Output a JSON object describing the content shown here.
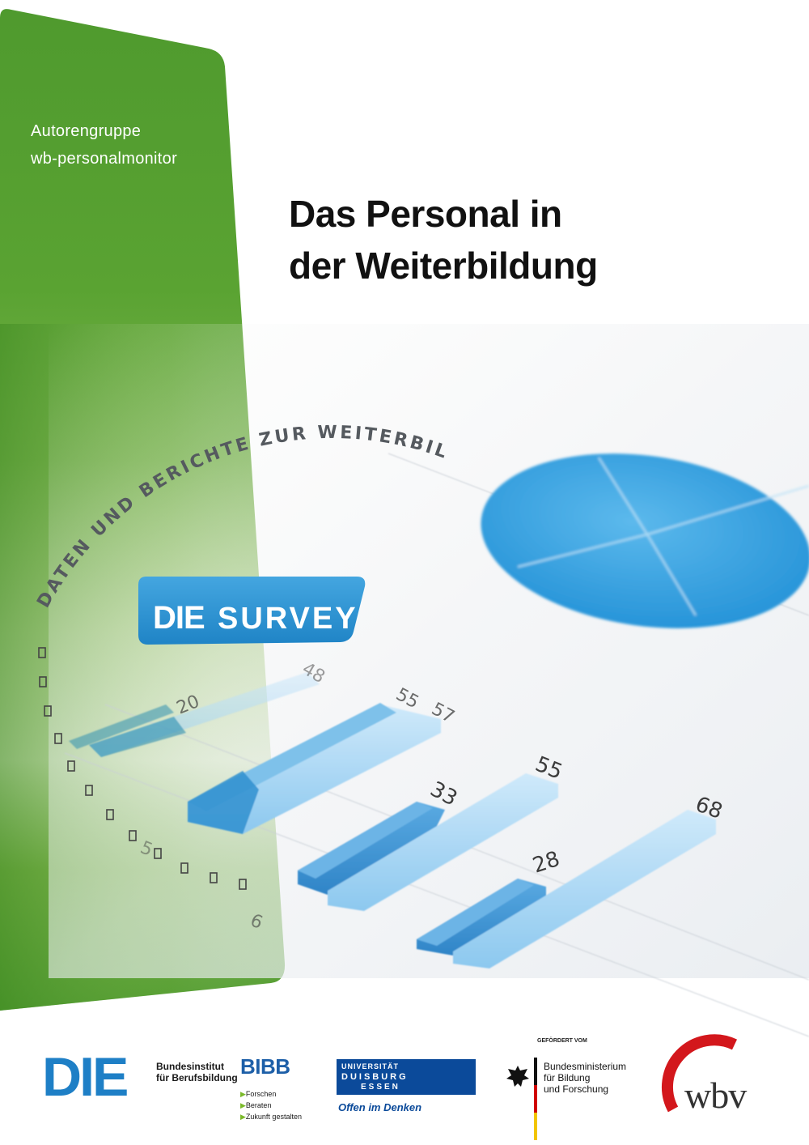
{
  "cover": {
    "authors": [
      "Autorengruppe",
      "wb-personalmonitor"
    ],
    "title_lines": [
      "Das Personal in",
      "der Weiterbildung"
    ],
    "series_arc": "DATEN UND BERICHTE ZUR WEITERBILDUNG",
    "badge": {
      "die": "DIE",
      "survey": "SURVEY"
    }
  },
  "illustration": {
    "bar_labels": [
      "20",
      "48",
      "55",
      "57",
      "33",
      "55",
      "28",
      "68"
    ],
    "misc_labels": [
      "6",
      "5"
    ]
  },
  "logos": {
    "die": "DIE",
    "bibb": {
      "line1": "Bundesinstitut",
      "line2": "für Berufsbildung",
      "mark": "BIBB",
      "items": [
        "Forschen",
        "Beraten",
        "Zukunft gestalten"
      ]
    },
    "ude": {
      "line1": "UNIVERSITÄT",
      "line2": "DUISBURG",
      "line3": "ESSEN",
      "slogan": "Offen im Denken"
    },
    "bmbf": {
      "funded_by": "GEFÖRDERT VOM",
      "lines": [
        "Bundesministerium",
        "für Bildung",
        "und Forschung"
      ]
    },
    "wbv": "wbv"
  },
  "colors": {
    "green": "#4f9a2e",
    "light_green": "#6fb33f",
    "blue_badge": "#2a8fd0",
    "bar_dark": "#3d8fd0",
    "bar_light": "#9fd0f0"
  }
}
